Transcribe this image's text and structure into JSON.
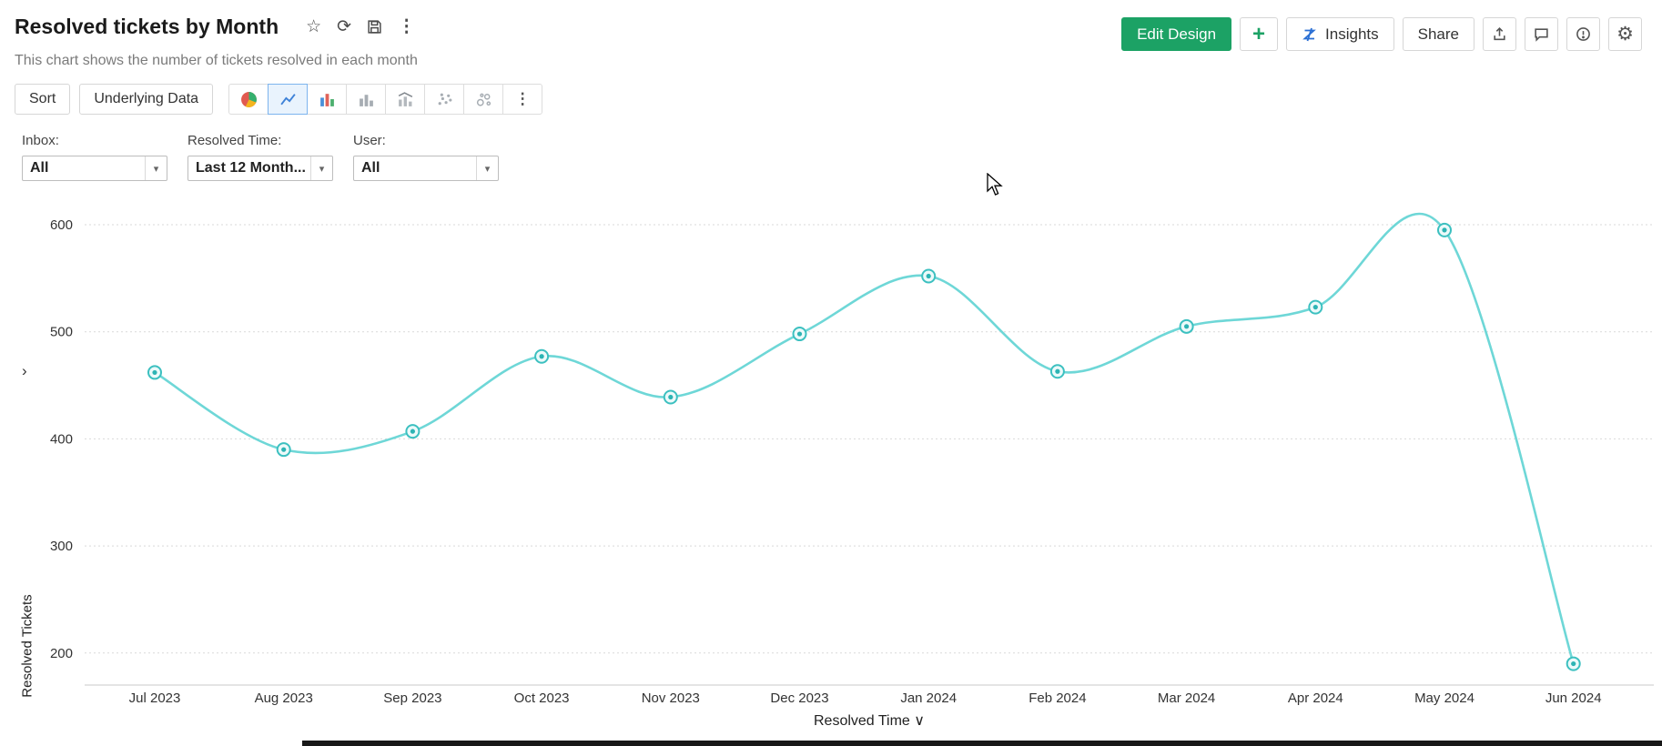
{
  "header": {
    "title": "Resolved tickets by Month",
    "subtitle": "This chart shows the number of tickets resolved in each month"
  },
  "actions": {
    "edit_design": "Edit Design",
    "insights": "Insights",
    "share": "Share"
  },
  "toolbar": {
    "sort": "Sort",
    "underlying_data": "Underlying Data",
    "selected_chart_type": "line"
  },
  "filters": [
    {
      "label": "Inbox:",
      "value": "All"
    },
    {
      "label": "Resolved Time:",
      "value": "Last 12 Month..."
    },
    {
      "label": "User:",
      "value": "All"
    }
  ],
  "icons": {
    "star": "☆",
    "refresh": "⟳",
    "more_vertical": "⋮",
    "gear": "⚙",
    "plus": "+",
    "caret_down": "▾",
    "chevron_down": "∨",
    "chevron_right": "›"
  },
  "colors": {
    "primary_green": "#1ca265",
    "insights_blue": "#2a6fd4",
    "selected_chart_bg": "#e9f3fd",
    "selected_chart_border": "#7db4ee"
  },
  "chart_data": {
    "type": "line",
    "title": "Resolved tickets by Month",
    "x": [
      "Jul 2023",
      "Aug 2023",
      "Sep 2023",
      "Oct 2023",
      "Nov 2023",
      "Dec 2023",
      "Jan 2024",
      "Feb 2024",
      "Mar 2024",
      "Apr 2024",
      "May 2024",
      "Jun 2024"
    ],
    "values": [
      462,
      390,
      407,
      477,
      439,
      498,
      552,
      463,
      505,
      523,
      595,
      190
    ],
    "xlabel": "Resolved Time",
    "ylabel": "Resolved Tickets",
    "yticks": [
      200,
      300,
      400,
      500,
      600
    ],
    "ylim": [
      170,
      625
    ],
    "grid": "dotted-horizontal",
    "legend": "none",
    "line_color": "#6ed7d7",
    "marker_stroke": "#3cc0c0",
    "marker_fill": "#ecfafa",
    "marker_dot": "#2db4b4"
  }
}
